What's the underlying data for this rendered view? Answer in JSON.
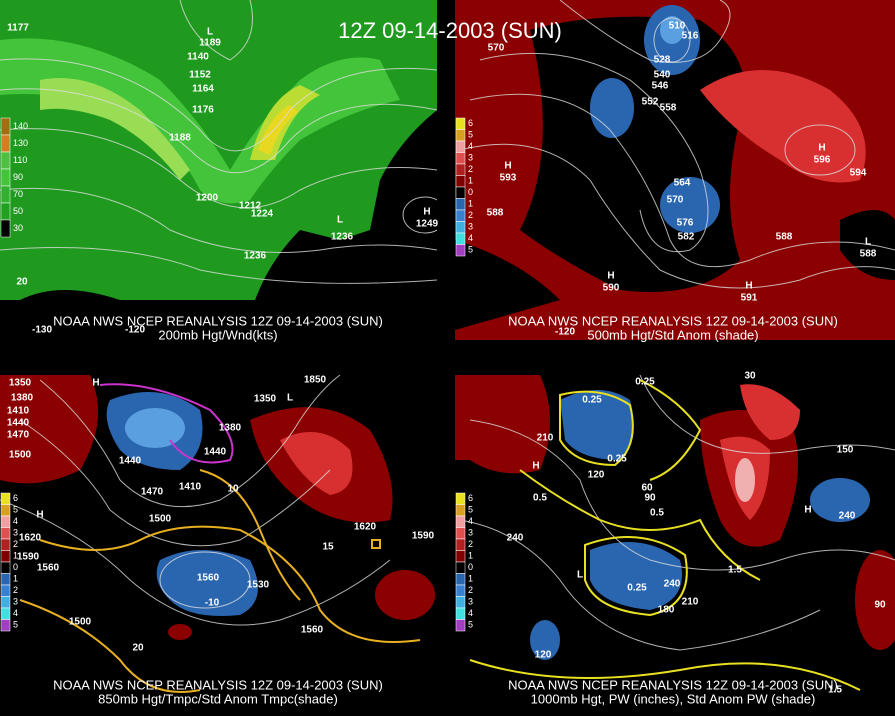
{
  "title": "12Z 09-14-2003 (SUN)",
  "panels": [
    {
      "caption_line1": "NOAA NWS NCEP REANALYSIS 12Z 09-14-2003 (SUN)",
      "caption_line2": "200mb Hgt/Wnd(kts)",
      "legend": [
        "140",
        "130",
        "110",
        "90",
        "70",
        "50",
        "30"
      ],
      "contour_labels": [
        "1177",
        "L",
        "1189",
        "1140",
        "1152",
        "1164",
        "1176",
        "1188",
        "1200",
        "1212",
        "1224",
        "L",
        "1236",
        "1236",
        "H",
        "1249",
        "20",
        "-130",
        "-120"
      ]
    },
    {
      "caption_line1": "NOAA NWS NCEP REANALYSIS 12Z 09-14-2003 (SUN)",
      "caption_line2": "500mb Hgt/Std Anom (shade)",
      "legend": [
        "6",
        "5",
        "4",
        "3",
        "2",
        "1",
        "0",
        "1",
        "2",
        "3",
        "4",
        "5"
      ],
      "contour_labels": [
        "510",
        "516",
        "528",
        "540",
        "546",
        "552",
        "558",
        "570",
        "H",
        "593",
        "564",
        "570",
        "576",
        "582",
        "588",
        "588",
        "H",
        "596",
        "594",
        "H",
        "590",
        "H",
        "591",
        "L",
        "588",
        "-120"
      ]
    },
    {
      "caption_line1": "NOAA NWS NCEP REANALYSIS 12Z 09-14-2003 (SUN)",
      "caption_line2": "850mb Hgt/Tmpc/Std Anom Tmpc(shade)",
      "legend": [
        "6",
        "5",
        "4",
        "3",
        "2",
        "1",
        "0",
        "1",
        "2",
        "3",
        "4",
        "5"
      ],
      "contour_labels": [
        "1350",
        "1380",
        "1410",
        "1440",
        "1470",
        "1500",
        "1440",
        "1470",
        "1410",
        "1380",
        "1350",
        "1440",
        "1500",
        "1530",
        "1560",
        "1560",
        "1590",
        "1620",
        "1620",
        "1590",
        "1560",
        "1500",
        "1850",
        "-10",
        "15",
        "20",
        "10",
        "H",
        "H",
        "L"
      ]
    },
    {
      "caption_line1": "NOAA NWS NCEP REANALYSIS 12Z 09-14-2003 (SUN)",
      "caption_line2": "1000mb Hgt, PW (inches), Std Anom PW (shade)",
      "legend": [
        "6",
        "5",
        "4",
        "3",
        "2",
        "1",
        "0",
        "1",
        "2",
        "3",
        "4",
        "5"
      ],
      "contour_labels": [
        "0.25",
        "0.25",
        "0.5",
        "0.5",
        "0.25",
        "0.25",
        "1.5",
        "1.5",
        "240",
        "240",
        "150",
        "120",
        "180",
        "210",
        "240",
        "90",
        "60",
        "90",
        "30",
        "210",
        "120",
        "H",
        "H",
        "L"
      ]
    }
  ]
}
